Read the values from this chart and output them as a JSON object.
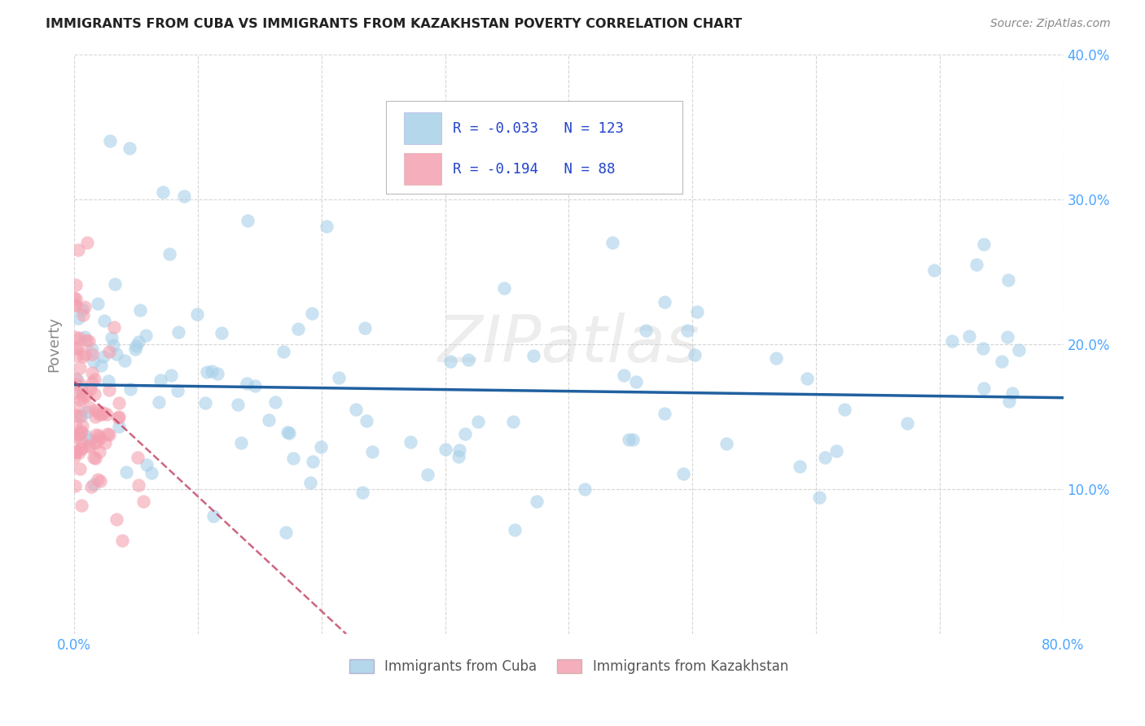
{
  "title": "IMMIGRANTS FROM CUBA VS IMMIGRANTS FROM KAZAKHSTAN POVERTY CORRELATION CHART",
  "source": "Source: ZipAtlas.com",
  "ylabel": "Poverty",
  "watermark": "ZIPatlas",
  "r_cuba": -0.033,
  "n_cuba": 123,
  "r_kaz": -0.194,
  "n_kaz": 88,
  "xlim": [
    0.0,
    0.8
  ],
  "ylim": [
    0.0,
    0.4
  ],
  "color_cuba": "#a8d0e8",
  "color_kaz": "#f4a0b0",
  "trendline_cuba_color": "#2060a0",
  "trendline_kaz_color": "#c04060",
  "tick_color": "#4da6ff",
  "legend_label_cuba": "Immigrants from Cuba",
  "legend_label_kaz": "Immigrants from Kazakhstan",
  "title_color": "#222222",
  "source_color": "#888888",
  "ylabel_color": "#888888"
}
